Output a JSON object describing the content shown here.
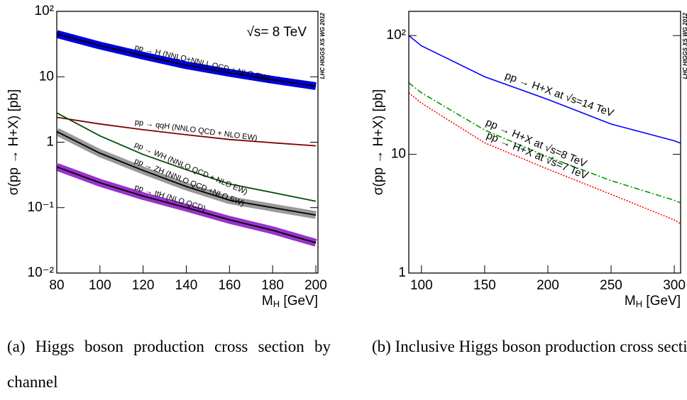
{
  "chart_data": [
    {
      "type": "line",
      "log_y": true,
      "ylabel": "σ(pp → H+X) [pb]",
      "xlabel": [
        "M",
        "H",
        " [GeV]"
      ],
      "energy": "√s= 8 TeV",
      "watermark": "LHC HIGGS XS WG 2012",
      "caption": "(a) Higgs boson production cross section by channel",
      "xlim": [
        80,
        201
      ],
      "ylim": [
        0.01,
        100
      ],
      "xticks": [
        80,
        100,
        120,
        140,
        160,
        180,
        200
      ],
      "yticks": [
        {
          "value": 0.01,
          "label": "10⁻²"
        },
        {
          "value": 0.1,
          "label": "10⁻¹"
        },
        1,
        10,
        {
          "value": 100,
          "label": "10²"
        }
      ],
      "x": [
        80,
        100,
        120,
        140,
        160,
        180,
        200
      ],
      "series": [
        {
          "name": "pp → H (NNLO+NNLL QCD + NLO EW)",
          "color": "#000000",
          "band_color": "#0000dd",
          "label_color": "#000099",
          "values": [
            45,
            30,
            21,
            15,
            11.5,
            9,
            7.2
          ]
        },
        {
          "name": "pp → qqH (NNLO QCD + NLO EW)",
          "color": "#800000",
          "label_color": "#ff0000",
          "values": [
            2.4,
            1.9,
            1.55,
            1.3,
            1.1,
            0.98,
            0.88
          ]
        },
        {
          "name": "pp → WH (NNLO QCD + NLO EW)",
          "color": "#004d00",
          "label_color": "#009900",
          "values": [
            2.8,
            1.25,
            0.65,
            0.38,
            0.23,
            0.17,
            0.125
          ]
        },
        {
          "name": "pp → ZH (NNLO QCD +NLO EW)",
          "color": "#000000",
          "band_color": "#999999",
          "label_color": "#666666",
          "values": [
            1.45,
            0.68,
            0.37,
            0.21,
            0.13,
            0.1,
            0.077
          ]
        },
        {
          "name": "pp → ttH (NLO QCD)",
          "color": "#000000",
          "band_color": "#9933cc",
          "label_color": "#9933cc",
          "values": [
            0.42,
            0.24,
            0.15,
            0.1,
            0.065,
            0.045,
            0.029
          ]
        }
      ]
    },
    {
      "type": "line",
      "log_y": true,
      "ylabel": "σ(pp → H+X) [pb]",
      "xlabel": [
        "M",
        "H",
        " [GeV]"
      ],
      "watermark": "LHC HIGGS XS WG 2012",
      "caption": "(b) Inclusive Higgs boson production cross section",
      "xlim": [
        90,
        305
      ],
      "ylim": [
        1,
        160
      ],
      "xticks": [
        100,
        150,
        200,
        250,
        300
      ],
      "yticks": [
        1,
        10,
        {
          "value": 100,
          "label": "10²"
        }
      ],
      "x": [
        90,
        100,
        150,
        200,
        250,
        300,
        305
      ],
      "series": [
        {
          "name": "pp → H+X at √s=14 TeV",
          "color": "#0000ff",
          "dash": "solid",
          "values": [
            100,
            82,
            45,
            29,
            18,
            13,
            12.4
          ]
        },
        {
          "name": "pp → H+X at √s=8 TeV",
          "color": "#009900",
          "dash": "dashdot",
          "values": [
            40,
            33,
            16,
            9.5,
            6,
            4.1,
            3.9
          ]
        },
        {
          "name": "pp → H+X at √s=7 TeV",
          "color": "#ff0000",
          "dash": "dotted",
          "values": [
            33,
            27,
            12.5,
            7.5,
            4.6,
            2.8,
            2.6
          ]
        }
      ]
    }
  ]
}
